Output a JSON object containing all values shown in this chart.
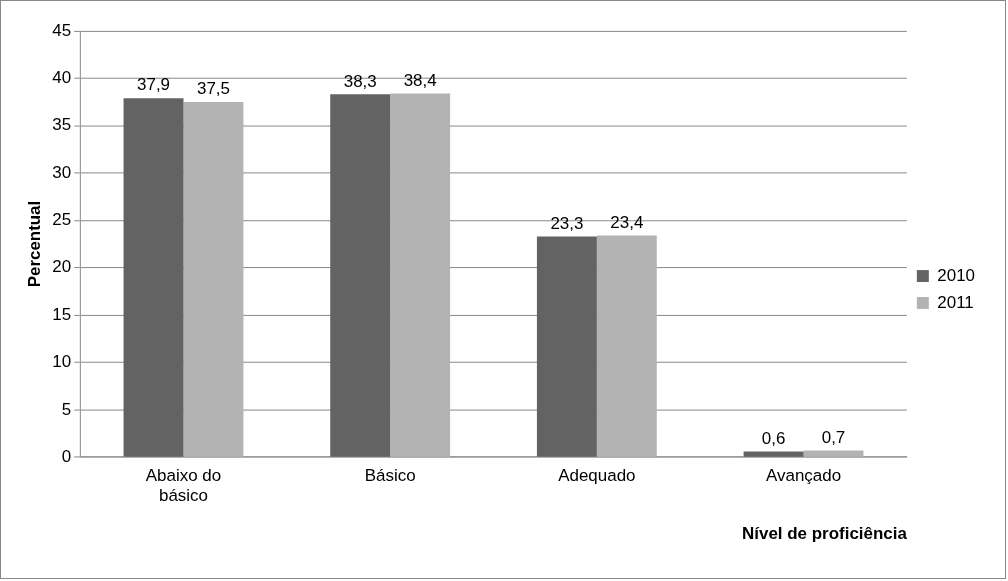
{
  "chart_data": {
    "type": "bar",
    "xlabel": "Nível de proficiência",
    "ylabel": "Percentual",
    "categories": [
      "Abaixo do básico",
      "Básico",
      "Adequado",
      "Avançado"
    ],
    "series": [
      {
        "name": "2010",
        "color": "#636363",
        "values": [
          37.9,
          38.3,
          23.3,
          0.6
        ],
        "value_labels": [
          "37,9",
          "38,3",
          "23,3",
          "0,6"
        ]
      },
      {
        "name": "2011",
        "color": "#b3b3b3",
        "values": [
          37.5,
          38.4,
          23.4,
          0.7
        ],
        "value_labels": [
          "37,5",
          "38,4",
          "23,4",
          "0,7"
        ]
      }
    ],
    "ylim": [
      0,
      45
    ],
    "yticks": [
      0,
      5,
      10,
      15,
      20,
      25,
      30,
      35,
      40,
      45
    ],
    "grid": "y",
    "legend": "right"
  }
}
